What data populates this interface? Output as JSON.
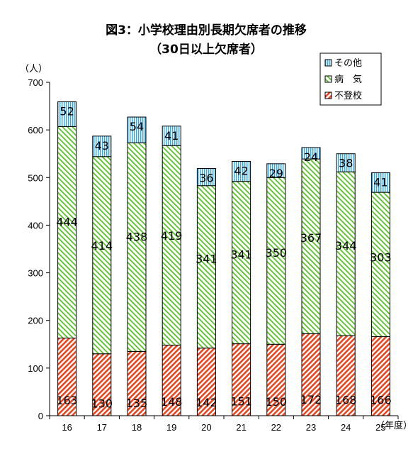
{
  "chart_data": {
    "type": "bar",
    "stacked": true,
    "title": "図3：小学校理由別長期欠席者の推移",
    "subtitle": "（30日以上欠席者）",
    "ylabel": "（人）",
    "xlabel": "（年度）",
    "ylim": [
      0,
      700
    ],
    "yticks": [
      0,
      100,
      200,
      300,
      400,
      500,
      600,
      700
    ],
    "categories": [
      "16",
      "17",
      "18",
      "19",
      "20",
      "21",
      "22",
      "23",
      "24",
      "25"
    ],
    "series": [
      {
        "name": "不登校",
        "color": "#e8451e",
        "pattern": "diag-red",
        "values": [
          163,
          130,
          135,
          148,
          142,
          151,
          150,
          172,
          168,
          166
        ]
      },
      {
        "name": "病　気",
        "color": "#66cc33",
        "pattern": "diag-green",
        "values": [
          444,
          414,
          438,
          419,
          341,
          341,
          350,
          367,
          344,
          303
        ]
      },
      {
        "name": "その他",
        "color": "#33aaee",
        "pattern": "vert-blue",
        "values": [
          52,
          43,
          54,
          41,
          36,
          42,
          29,
          24,
          38,
          41
        ]
      }
    ],
    "legend": {
      "position": "top-right",
      "order": [
        "その他",
        "病　気",
        "不登校"
      ]
    },
    "grid": false
  }
}
